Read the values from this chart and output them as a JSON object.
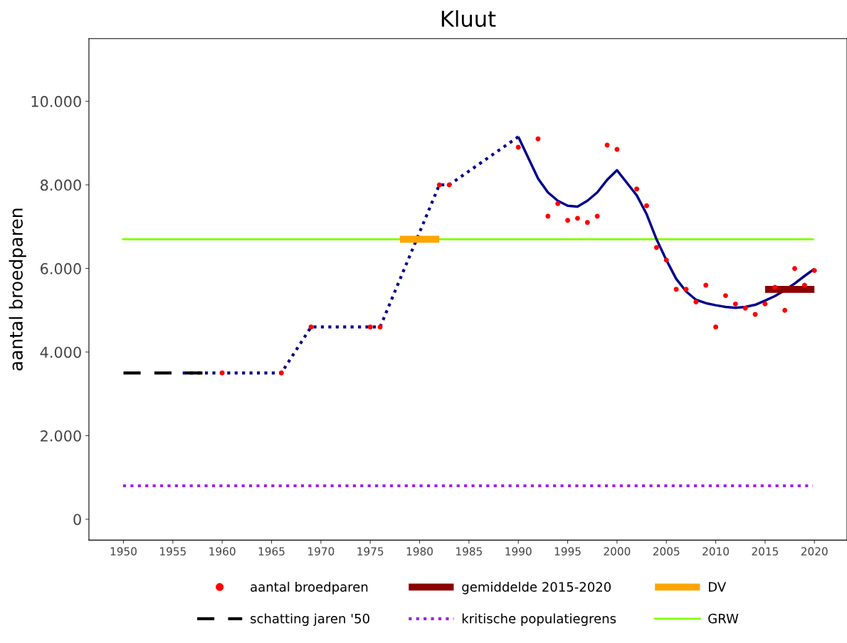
{
  "chart_data": {
    "type": "line",
    "title": "Kluut",
    "ylabel": "aantal broedparen",
    "xlim": [
      1946.5,
      2023.3
    ],
    "xticks": [
      1950,
      1955,
      1960,
      1965,
      1970,
      1975,
      1980,
      1985,
      1990,
      1995,
      2000,
      2005,
      2010,
      2015,
      2020
    ],
    "ylim": [
      -500,
      11500
    ],
    "yticks": [
      0,
      {
        "value": 2000,
        "label": "2.000"
      },
      {
        "value": 4000,
        "label": "4.000"
      },
      {
        "value": 6000,
        "label": "6.000"
      },
      {
        "value": 8000,
        "label": "8.000"
      },
      {
        "value": 10000,
        "label": "10.000"
      }
    ],
    "grid": false,
    "legend": "bottom",
    "series": [
      {
        "name": "aantal broedparen",
        "type": "scatter",
        "color": "#ff0000",
        "marker": "circle",
        "x": [
          1960,
          1966,
          1969,
          1975,
          1976,
          1982,
          1983,
          1990,
          1992,
          1993,
          1994,
          1995,
          1996,
          1997,
          1998,
          1999,
          2000,
          2002,
          2003,
          2004,
          2005,
          2006,
          2007,
          2008,
          2009,
          2010,
          2011,
          2012,
          2013,
          2014,
          2015,
          2016,
          2017,
          2018,
          2019,
          2020
        ],
        "values": [
          3500,
          3500,
          4600,
          4600,
          4600,
          8000,
          8000,
          8900,
          9100,
          7250,
          7550,
          7150,
          7200,
          7100,
          7250,
          8950,
          8850,
          7900,
          7500,
          6500,
          6200,
          5500,
          5500,
          5200,
          5600,
          4600,
          5350,
          5150,
          5050,
          4900,
          5150,
          5550,
          5000,
          6000,
          5600,
          5950
        ]
      },
      {
        "color": "#00008b",
        "line_style": "dotted",
        "x": [
          1956,
          1966,
          1969,
          1976,
          1982,
          1983,
          1990
        ],
        "values": [
          3500,
          3500,
          4600,
          4600,
          8000,
          8000,
          9150
        ]
      },
      {
        "color": "#00008b",
        "line_style": "solid",
        "x": [
          1990,
          1992,
          1993,
          1994,
          1995,
          1996,
          1997,
          1998,
          1999,
          2000,
          2001,
          2002,
          2003,
          2004,
          2005,
          2006,
          2007,
          2008,
          2009,
          2010,
          2011,
          2012,
          2013,
          2014,
          2015,
          2016,
          2017,
          2018,
          2019,
          2020
        ],
        "values": [
          9150,
          8150,
          7820,
          7620,
          7500,
          7480,
          7620,
          7820,
          8120,
          8350,
          8050,
          7750,
          7300,
          6700,
          6200,
          5750,
          5450,
          5250,
          5170,
          5120,
          5080,
          5060,
          5080,
          5130,
          5230,
          5340,
          5480,
          5640,
          5820,
          5990
        ]
      },
      {
        "name": "gemiddelde 2015-2020",
        "color": "#8b0000",
        "line_style": "solid",
        "x": [
          2015,
          2020
        ],
        "values": [
          5500,
          5500
        ]
      },
      {
        "name": "DV",
        "color": "#ffa500",
        "line_style": "solid",
        "x": [
          1978,
          1982
        ],
        "values": [
          6700,
          6700
        ]
      },
      {
        "name": "schatting jaren '50",
        "color": "#000000",
        "line_style": "dashed",
        "x": [
          1950,
          1958
        ],
        "values": [
          3500,
          3500
        ]
      }
    ],
    "ref_lines": [
      {
        "axis": "y",
        "value": 800,
        "label": "kritische populatiegrens",
        "color": "#a020f0",
        "line_style": "dotted"
      },
      {
        "axis": "y",
        "value": 6700,
        "label": "GRW",
        "color": "#7fff00",
        "line_style": "solid"
      }
    ]
  }
}
